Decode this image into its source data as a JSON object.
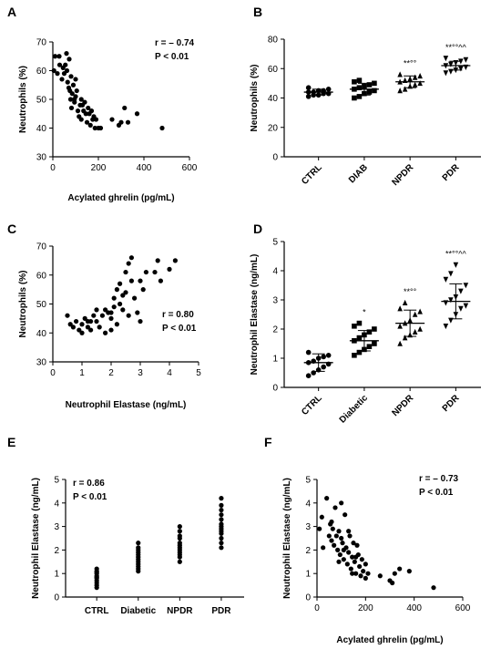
{
  "chart_data": [
    {
      "panel": "A",
      "type": "scatter",
      "xlabel": "Acylated ghrelin (pg/mL)",
      "ylabel": "Neutrophils (%)",
      "xlim": [
        0,
        600
      ],
      "ylim": [
        30,
        70
      ],
      "xticks": [
        0,
        200,
        400,
        600
      ],
      "yticks": [
        30,
        40,
        50,
        60,
        70
      ],
      "annotations": [
        "r = – 0.74",
        "P < 0.01"
      ],
      "points": [
        [
          5,
          60
        ],
        [
          10,
          65
        ],
        [
          20,
          59
        ],
        [
          28,
          65
        ],
        [
          30,
          62
        ],
        [
          40,
          57
        ],
        [
          45,
          61
        ],
        [
          50,
          59
        ],
        [
          55,
          62
        ],
        [
          60,
          66
        ],
        [
          62,
          60
        ],
        [
          65,
          56
        ],
        [
          70,
          54
        ],
        [
          72,
          64
        ],
        [
          78,
          50
        ],
        [
          80,
          58
        ],
        [
          82,
          47
        ],
        [
          85,
          52
        ],
        [
          90,
          55
        ],
        [
          95,
          49
        ],
        [
          100,
          51
        ],
        [
          100,
          57
        ],
        [
          105,
          53
        ],
        [
          110,
          46
        ],
        [
          115,
          44
        ],
        [
          120,
          48
        ],
        [
          125,
          43
        ],
        [
          130,
          48
        ],
        [
          135,
          46
        ],
        [
          140,
          49
        ],
        [
          145,
          45
        ],
        [
          150,
          42
        ],
        [
          155,
          47
        ],
        [
          160,
          45
        ],
        [
          165,
          41
        ],
        [
          170,
          46
        ],
        [
          175,
          43
        ],
        [
          180,
          44
        ],
        [
          185,
          40
        ],
        [
          190,
          43
        ],
        [
          200,
          40
        ],
        [
          210,
          40
        ],
        [
          260,
          43
        ],
        [
          290,
          41
        ],
        [
          300,
          42
        ],
        [
          315,
          47
        ],
        [
          330,
          42
        ],
        [
          370,
          45
        ],
        [
          480,
          40
        ],
        [
          95,
          50
        ],
        [
          125,
          50
        ],
        [
          75,
          53
        ]
      ]
    },
    {
      "panel": "B",
      "type": "dot-plot",
      "ylabel": "Neutrophils (%)",
      "ylim": [
        0,
        80
      ],
      "yticks": [
        0,
        20,
        40,
        60,
        80
      ],
      "categories": [
        "CTRL",
        "DIAB",
        "NPDR",
        "PDR"
      ],
      "annotations": [
        "",
        "",
        "**°°",
        "**°°^^"
      ],
      "means": [
        44,
        46,
        51,
        62
      ],
      "sd": [
        2,
        4,
        4,
        3
      ],
      "values": [
        [
          41,
          42,
          42,
          43,
          43,
          44,
          44,
          45,
          45,
          46,
          47
        ],
        [
          40,
          41,
          43,
          44,
          45,
          46,
          47,
          48,
          49,
          50,
          51,
          52
        ],
        [
          45,
          46,
          48,
          49,
          50,
          51,
          52,
          53,
          54,
          55,
          56
        ],
        [
          57,
          58,
          59,
          60,
          61,
          62,
          63,
          64,
          65,
          66,
          67
        ]
      ]
    },
    {
      "panel": "C",
      "type": "scatter",
      "xlabel": "Neutrophil Elastase (ng/mL)",
      "ylabel": "Neutrophils (%)",
      "xlim": [
        0,
        5
      ],
      "ylim": [
        30,
        70
      ],
      "xticks": [
        0,
        1,
        2,
        3,
        4,
        5
      ],
      "yticks": [
        30,
        40,
        50,
        60,
        70
      ],
      "annotations": [
        "r = 0.80",
        "P < 0.01"
      ],
      "points": [
        [
          0.5,
          46
        ],
        [
          0.6,
          43
        ],
        [
          0.7,
          42
        ],
        [
          0.8,
          44
        ],
        [
          0.9,
          41
        ],
        [
          1.0,
          43
        ],
        [
          1.0,
          40
        ],
        [
          1.1,
          45
        ],
        [
          1.2,
          44
        ],
        [
          1.2,
          42
        ],
        [
          1.3,
          41
        ],
        [
          1.4,
          46
        ],
        [
          1.5,
          44
        ],
        [
          1.5,
          48
        ],
        [
          1.6,
          42
        ],
        [
          1.7,
          46
        ],
        [
          1.8,
          48
        ],
        [
          1.8,
          40
        ],
        [
          1.9,
          47
        ],
        [
          2.0,
          41
        ],
        [
          2.0,
          45
        ],
        [
          2.1,
          52
        ],
        [
          2.1,
          49
        ],
        [
          2.2,
          55
        ],
        [
          2.2,
          43
        ],
        [
          2.3,
          57
        ],
        [
          2.3,
          50
        ],
        [
          2.4,
          53
        ],
        [
          2.5,
          54
        ],
        [
          2.5,
          61
        ],
        [
          2.6,
          64
        ],
        [
          2.6,
          46
        ],
        [
          2.7,
          66
        ],
        [
          2.7,
          58
        ],
        [
          2.8,
          52
        ],
        [
          2.9,
          47
        ],
        [
          3.0,
          58
        ],
        [
          3.0,
          44
        ],
        [
          3.1,
          55
        ],
        [
          3.2,
          61
        ],
        [
          3.5,
          61
        ],
        [
          3.6,
          65
        ],
        [
          3.7,
          58
        ],
        [
          4.0,
          62
        ],
        [
          4.2,
          65
        ],
        [
          2.4,
          48
        ],
        [
          1.3,
          44
        ],
        [
          2.0,
          47
        ]
      ]
    },
    {
      "panel": "D",
      "type": "dot-plot",
      "ylabel": "Neutrophil Elastase (ng/mL)",
      "ylim": [
        0,
        5
      ],
      "yticks": [
        0,
        1,
        2,
        3,
        4,
        5
      ],
      "categories": [
        "CTRL",
        "Diabetic",
        "NPDR",
        "PDR"
      ],
      "annotations": [
        "",
        "*",
        "**°°",
        "**°°^^"
      ],
      "means": [
        0.85,
        1.6,
        2.2,
        2.95
      ],
      "sd": [
        0.3,
        0.35,
        0.45,
        0.6
      ],
      "values": [
        [
          0.4,
          0.5,
          0.6,
          0.7,
          0.8,
          0.85,
          0.9,
          1.0,
          1.05,
          1.1,
          1.2
        ],
        [
          1.1,
          1.2,
          1.3,
          1.4,
          1.5,
          1.6,
          1.7,
          1.8,
          1.9,
          2.0,
          2.1,
          2.2
        ],
        [
          1.5,
          1.7,
          1.8,
          1.9,
          2.0,
          2.1,
          2.2,
          2.3,
          2.5,
          2.6,
          2.7,
          2.9
        ],
        [
          2.1,
          2.3,
          2.5,
          2.7,
          2.8,
          2.9,
          3.0,
          3.1,
          3.3,
          3.5,
          3.7,
          3.9,
          4.2
        ]
      ]
    },
    {
      "panel": "E",
      "type": "strip",
      "ylabel": "Neutrophil Elastase (ng/mL)",
      "ylim": [
        0,
        5
      ],
      "yticks": [
        0,
        1,
        2,
        3,
        4,
        5
      ],
      "categories": [
        "CTRL",
        "Diabetic",
        "NPDR",
        "PDR"
      ],
      "annotations": [
        "r = 0.86",
        "P < 0.01"
      ],
      "values": [
        [
          0.4,
          0.5,
          0.6,
          0.7,
          0.8,
          0.85,
          0.9,
          1.0,
          1.05,
          1.1,
          1.2
        ],
        [
          1.1,
          1.2,
          1.3,
          1.4,
          1.5,
          1.6,
          1.7,
          1.8,
          1.9,
          2.0,
          2.1,
          2.3
        ],
        [
          1.5,
          1.7,
          1.8,
          1.9,
          2.0,
          2.1,
          2.2,
          2.3,
          2.5,
          2.6,
          2.8,
          3.0
        ],
        [
          2.1,
          2.3,
          2.5,
          2.7,
          2.8,
          2.9,
          3.0,
          3.1,
          3.3,
          3.5,
          3.7,
          3.9,
          4.2
        ]
      ]
    },
    {
      "panel": "F",
      "type": "scatter",
      "xlabel": "Acylated ghrelin  (pg/mL)",
      "ylabel": "Neutrophil Elastase (ng/mL)",
      "xlim": [
        0,
        600
      ],
      "ylim": [
        0,
        5
      ],
      "xticks": [
        0,
        200,
        400,
        600
      ],
      "yticks": [
        0,
        1,
        2,
        3,
        4,
        5
      ],
      "annotations": [
        "r = – 0.73",
        "P < 0.01"
      ],
      "points": [
        [
          10,
          2.9
        ],
        [
          20,
          3.4
        ],
        [
          25,
          2.1
        ],
        [
          40,
          4.2
        ],
        [
          50,
          2.6
        ],
        [
          55,
          3.1
        ],
        [
          60,
          2.4
        ],
        [
          65,
          2.9
        ],
        [
          70,
          2.2
        ],
        [
          75,
          3.8
        ],
        [
          80,
          2.6
        ],
        [
          85,
          2.0
        ],
        [
          90,
          2.8
        ],
        [
          95,
          1.8
        ],
        [
          100,
          4.0
        ],
        [
          100,
          2.5
        ],
        [
          105,
          2.3
        ],
        [
          110,
          1.6
        ],
        [
          115,
          3.5
        ],
        [
          120,
          2.1
        ],
        [
          125,
          1.4
        ],
        [
          130,
          1.9
        ],
        [
          135,
          2.6
        ],
        [
          140,
          1.2
        ],
        [
          145,
          1.7
        ],
        [
          150,
          2.3
        ],
        [
          155,
          1.5
        ],
        [
          160,
          1.0
        ],
        [
          165,
          2.2
        ],
        [
          170,
          1.8
        ],
        [
          175,
          1.3
        ],
        [
          180,
          0.9
        ],
        [
          185,
          1.6
        ],
        [
          190,
          1.1
        ],
        [
          200,
          1.4
        ],
        [
          210,
          1.0
        ],
        [
          260,
          0.9
        ],
        [
          300,
          0.7
        ],
        [
          310,
          0.6
        ],
        [
          320,
          1.0
        ],
        [
          340,
          1.2
        ],
        [
          380,
          1.1
        ],
        [
          480,
          0.4
        ],
        [
          130,
          2.8
        ],
        [
          90,
          1.5
        ],
        [
          60,
          3.2
        ],
        [
          160,
          1.7
        ],
        [
          200,
          0.8
        ],
        [
          110,
          2.0
        ],
        [
          145,
          1.0
        ]
      ]
    }
  ]
}
